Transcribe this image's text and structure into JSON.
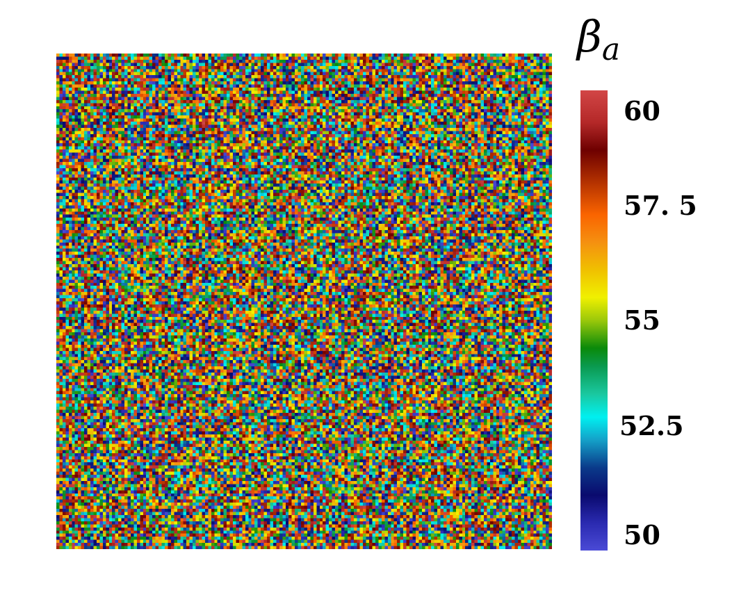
{
  "chart_data": {
    "type": "heatmap",
    "title": "",
    "xlabel": "",
    "ylabel": "",
    "grid_rows": 160,
    "grid_cols": 160,
    "value_range": [
      50,
      60
    ],
    "distribution": "uniform random per cell",
    "colorbar": {
      "title_symbol": "β",
      "title_subscript": "a",
      "range": [
        50,
        60
      ],
      "placement": "right",
      "ticks": [
        {
          "value": 60,
          "label": "60"
        },
        {
          "value": 57.5,
          "label": "57. 5"
        },
        {
          "value": 55,
          "label": "55"
        },
        {
          "value": 52.5,
          "label": "52.5"
        },
        {
          "value": 50,
          "label": "50"
        }
      ],
      "colormap": [
        {
          "value": 50.0,
          "color": "#4a4ad6"
        },
        {
          "value": 50.6,
          "color": "#2a2ab0"
        },
        {
          "value": 51.2,
          "color": "#0a0a6e"
        },
        {
          "value": 51.8,
          "color": "#0a3a8a"
        },
        {
          "value": 52.4,
          "color": "#14a0c8"
        },
        {
          "value": 52.9,
          "color": "#00f0f0"
        },
        {
          "value": 53.4,
          "color": "#1ac8a0"
        },
        {
          "value": 54.0,
          "color": "#0a9a50"
        },
        {
          "value": 54.4,
          "color": "#0a8a0a"
        },
        {
          "value": 55.0,
          "color": "#9ac80a"
        },
        {
          "value": 55.5,
          "color": "#f0f000"
        },
        {
          "value": 56.1,
          "color": "#f0c000"
        },
        {
          "value": 56.7,
          "color": "#f59010"
        },
        {
          "value": 57.3,
          "color": "#fa6400"
        },
        {
          "value": 58.0,
          "color": "#b43200"
        },
        {
          "value": 58.7,
          "color": "#6e0000"
        },
        {
          "value": 59.3,
          "color": "#b42828"
        },
        {
          "value": 60.0,
          "color": "#d24646"
        }
      ]
    }
  }
}
